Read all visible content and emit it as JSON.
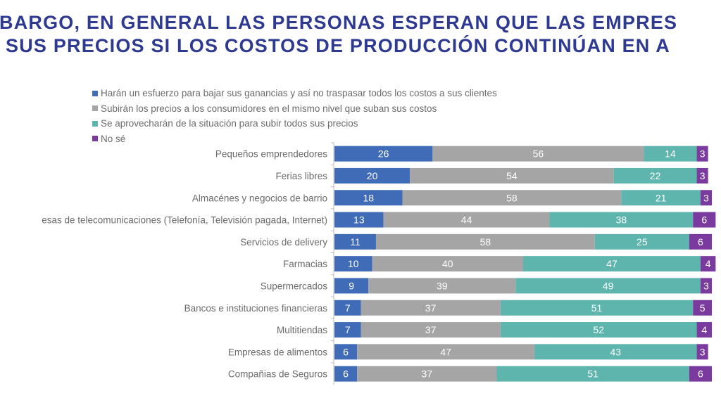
{
  "title_lines": [
    "BARGO, EN GENERAL LAS PERSONAS ESPERAN QUE LAS EMPRES",
    "SUS PRECIOS SI LOS COSTOS DE PRODUCCIÓN CONTINÚAN EN A"
  ],
  "chart_data": {
    "type": "bar",
    "orientation": "horizontal",
    "stacked": true,
    "legend_position": "top-left",
    "grid": false,
    "xlim": [
      0,
      100
    ],
    "categories": [
      "Pequeños emprendedores",
      "Ferias libres",
      "Almacénes y negocios de barrio",
      "esas de telecomunicaciones (Telefonía, Televisión pagada, Internet)",
      "Servicios de delivery",
      "Farmacias",
      "Supermercados",
      "Bancos e instituciones financieras",
      "Multitiendas",
      "Empresas de alimentos",
      "Compañias de Seguros"
    ],
    "series": [
      {
        "name": "Harán un esfuerzo para bajar sus ganancias y así no traspasar todos los costos a sus clientes",
        "color": "#3F6BB7",
        "values": [
          26,
          20,
          18,
          13,
          11,
          10,
          9,
          7,
          7,
          6,
          6
        ]
      },
      {
        "name": "Subirán los precios a los consumidores en el mismo nivel que suban sus costos",
        "color": "#A5A5A5",
        "values": [
          56,
          54,
          58,
          44,
          58,
          40,
          39,
          37,
          37,
          47,
          37
        ]
      },
      {
        "name": "Se aprovecharán de la situación para subir todos sus precios",
        "color": "#5DB5AE",
        "values": [
          14,
          22,
          21,
          38,
          25,
          47,
          49,
          51,
          52,
          43,
          51
        ]
      },
      {
        "name": "No sé",
        "color": "#7B3A9E",
        "values": [
          3,
          3,
          3,
          6,
          6,
          4,
          3,
          5,
          4,
          3,
          6
        ]
      }
    ]
  }
}
